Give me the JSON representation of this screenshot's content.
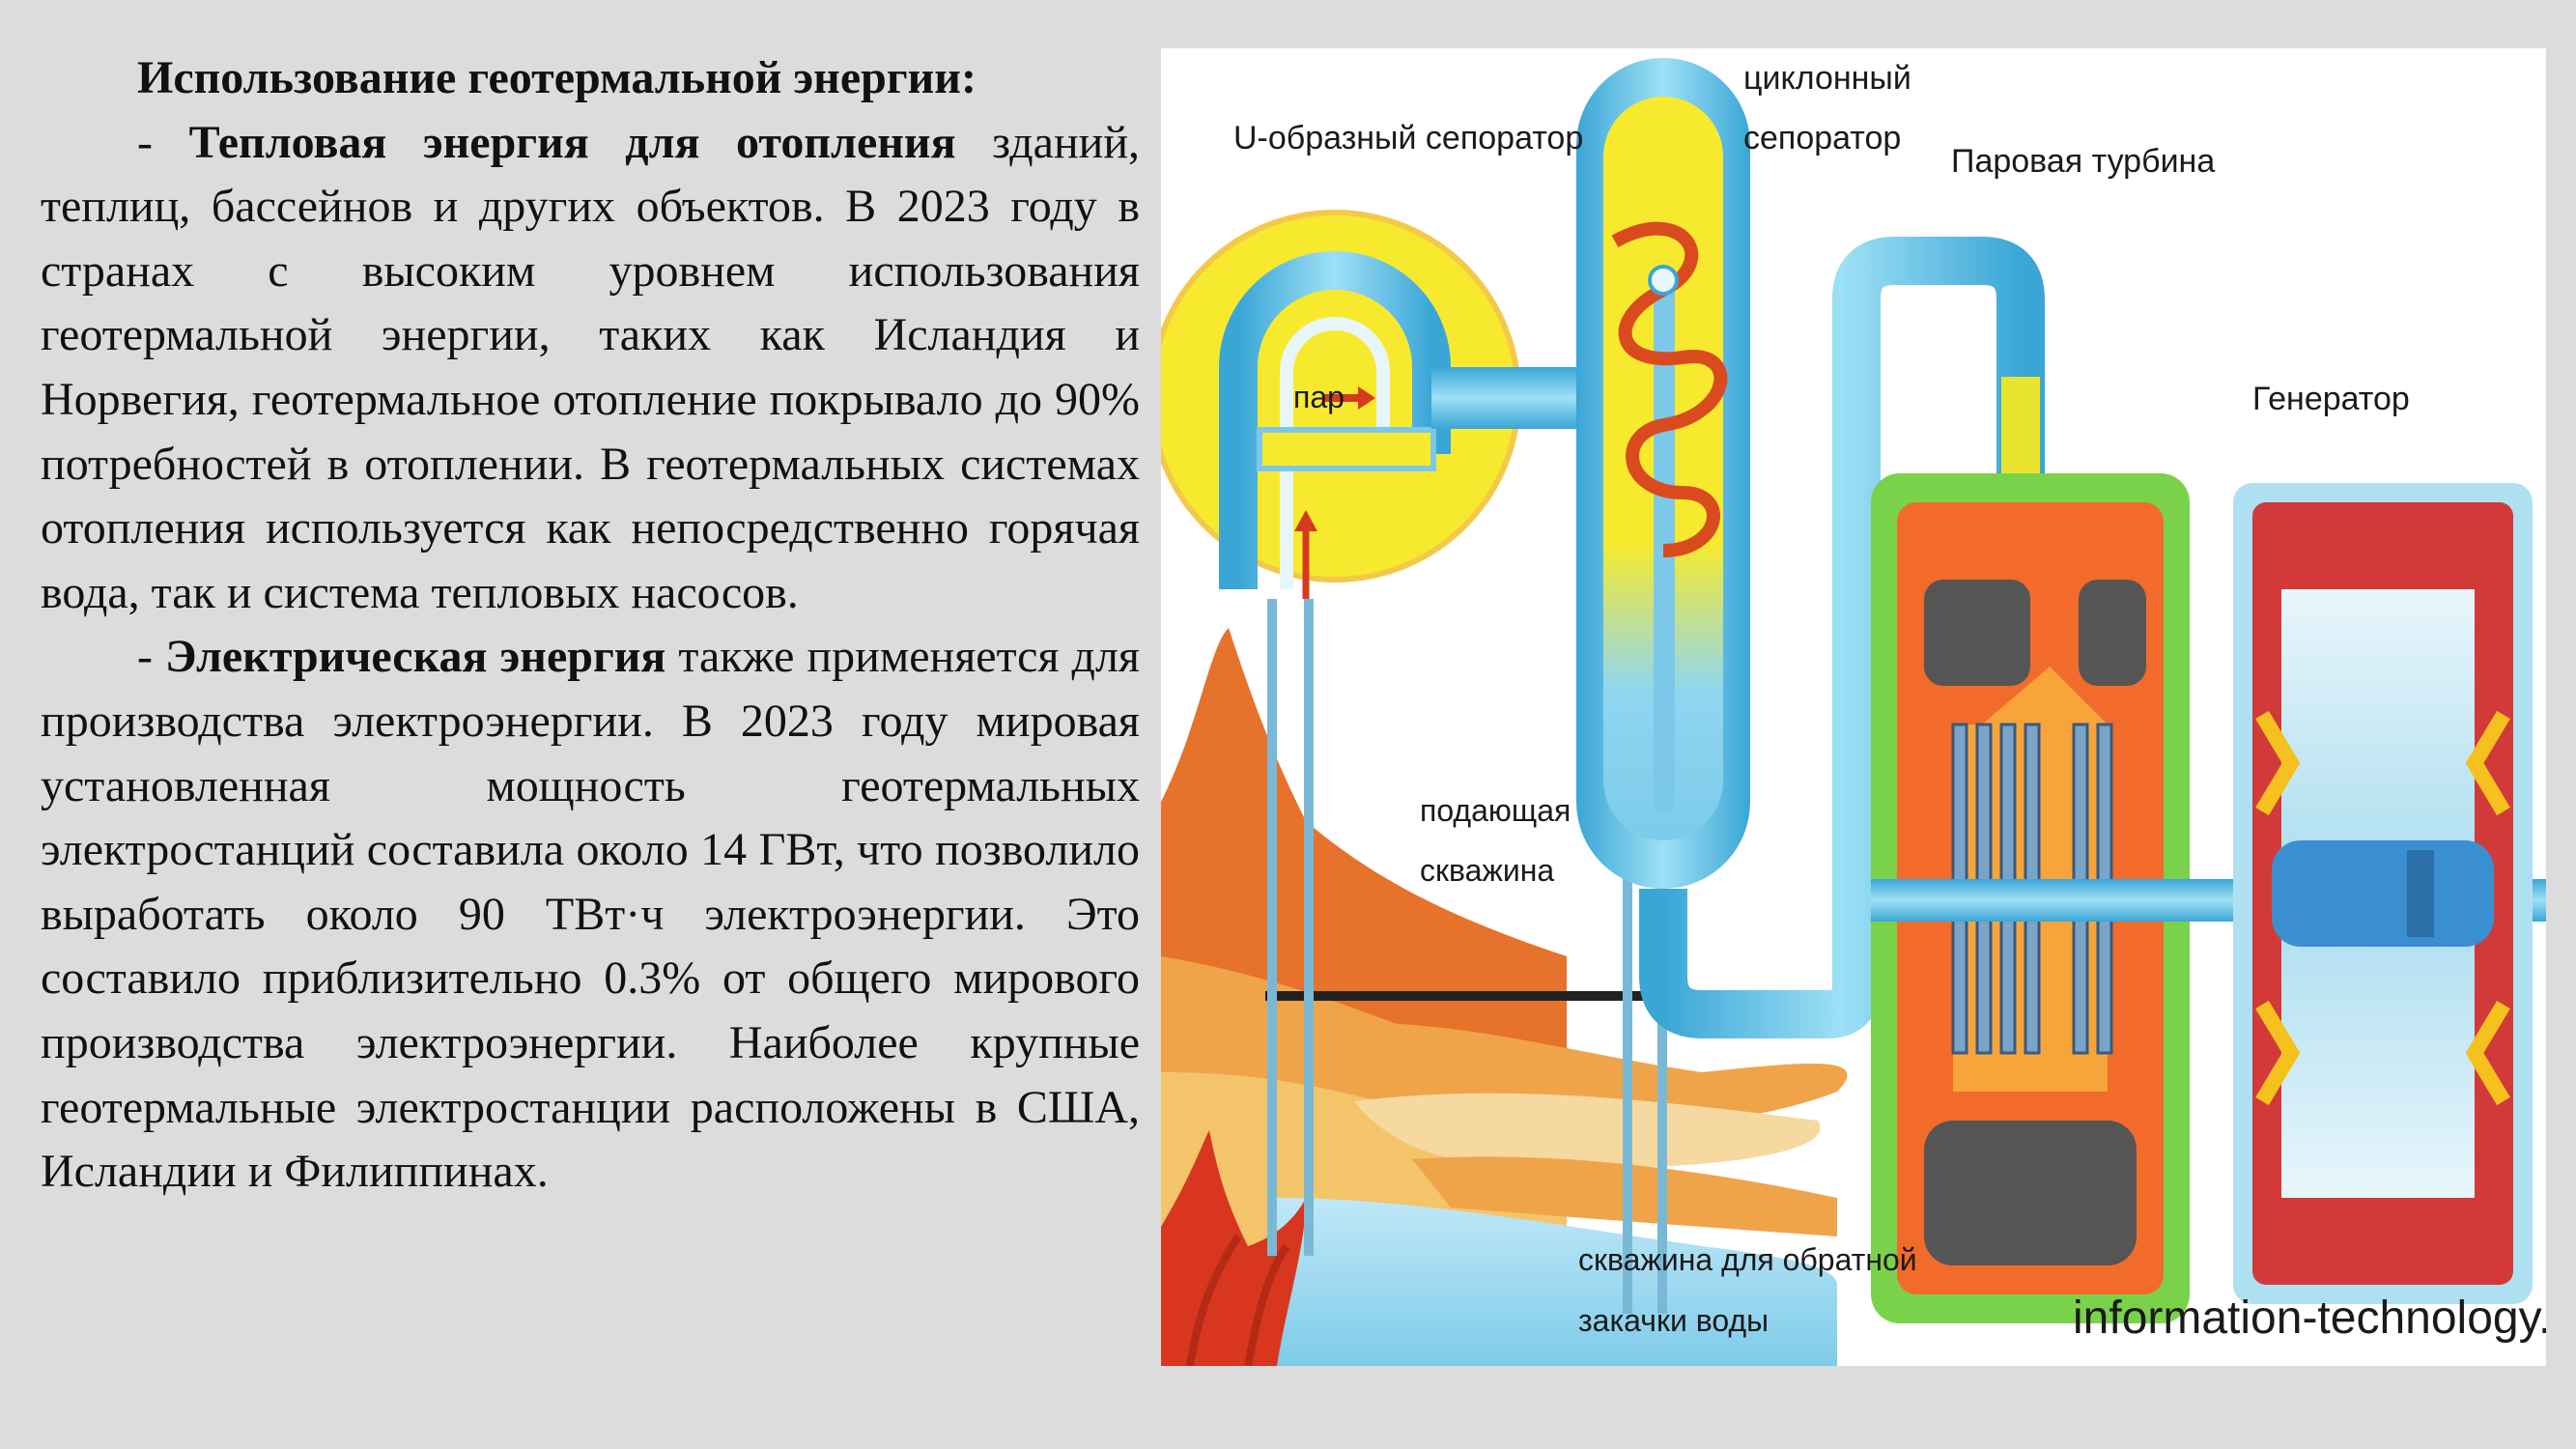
{
  "text": {
    "title": "Использование геотермальной энергии:",
    "p1_dash": "-",
    "p1_bold": "Тепловая энергия для отопления",
    "p1_rest": "зданий, теплиц, бассейнов и других объектов. В 2023 году в странах с высоким уровнем использования геотермальной энергии, таких как Исландия и Норвегия, геотермальное отопление покрывало до 90% потребностей в отоплении. В геотермальных системах отопления используется как непосредственно горячая вода, так и система тепловых насосов.",
    "p2_dash": "-",
    "p2_bold": "Электрическая энергия",
    "p2_rest": "также применяется для производства электроэнергии. В 2023 году мировая установленная мощность геотермальных электростанций составила около 14 ГВт, что позволило выработать около 90 ТВт·ч электроэнергии. Это составило приблизительно 0.3% от общего мирового производства электроэнергии. Наиболее крупные геотермальные электростанции расположены в США, Исландии и Филиппинах."
  },
  "figure": {
    "label_u_separator": "U-образный сепоратор",
    "label_cyclone_1": "циклонный",
    "label_cyclone_2": "сепоратор",
    "label_turbine": "Паровая турбина",
    "label_generator": "Генератор",
    "label_steam": "пар",
    "label_supply_1": "подающая",
    "label_supply_2": "скважина",
    "label_return_1": "скважина для обратной",
    "label_return_2": "закачки воды",
    "watermark": "information-technology.ru",
    "colors": {
      "earth": "#e07a2a",
      "pipe": "#5bbde0",
      "yellow": "#f5e632",
      "turbine_green": "#7ad24a",
      "turbine_orange": "#f26b2b",
      "generator_red": "#d23a3a"
    }
  }
}
